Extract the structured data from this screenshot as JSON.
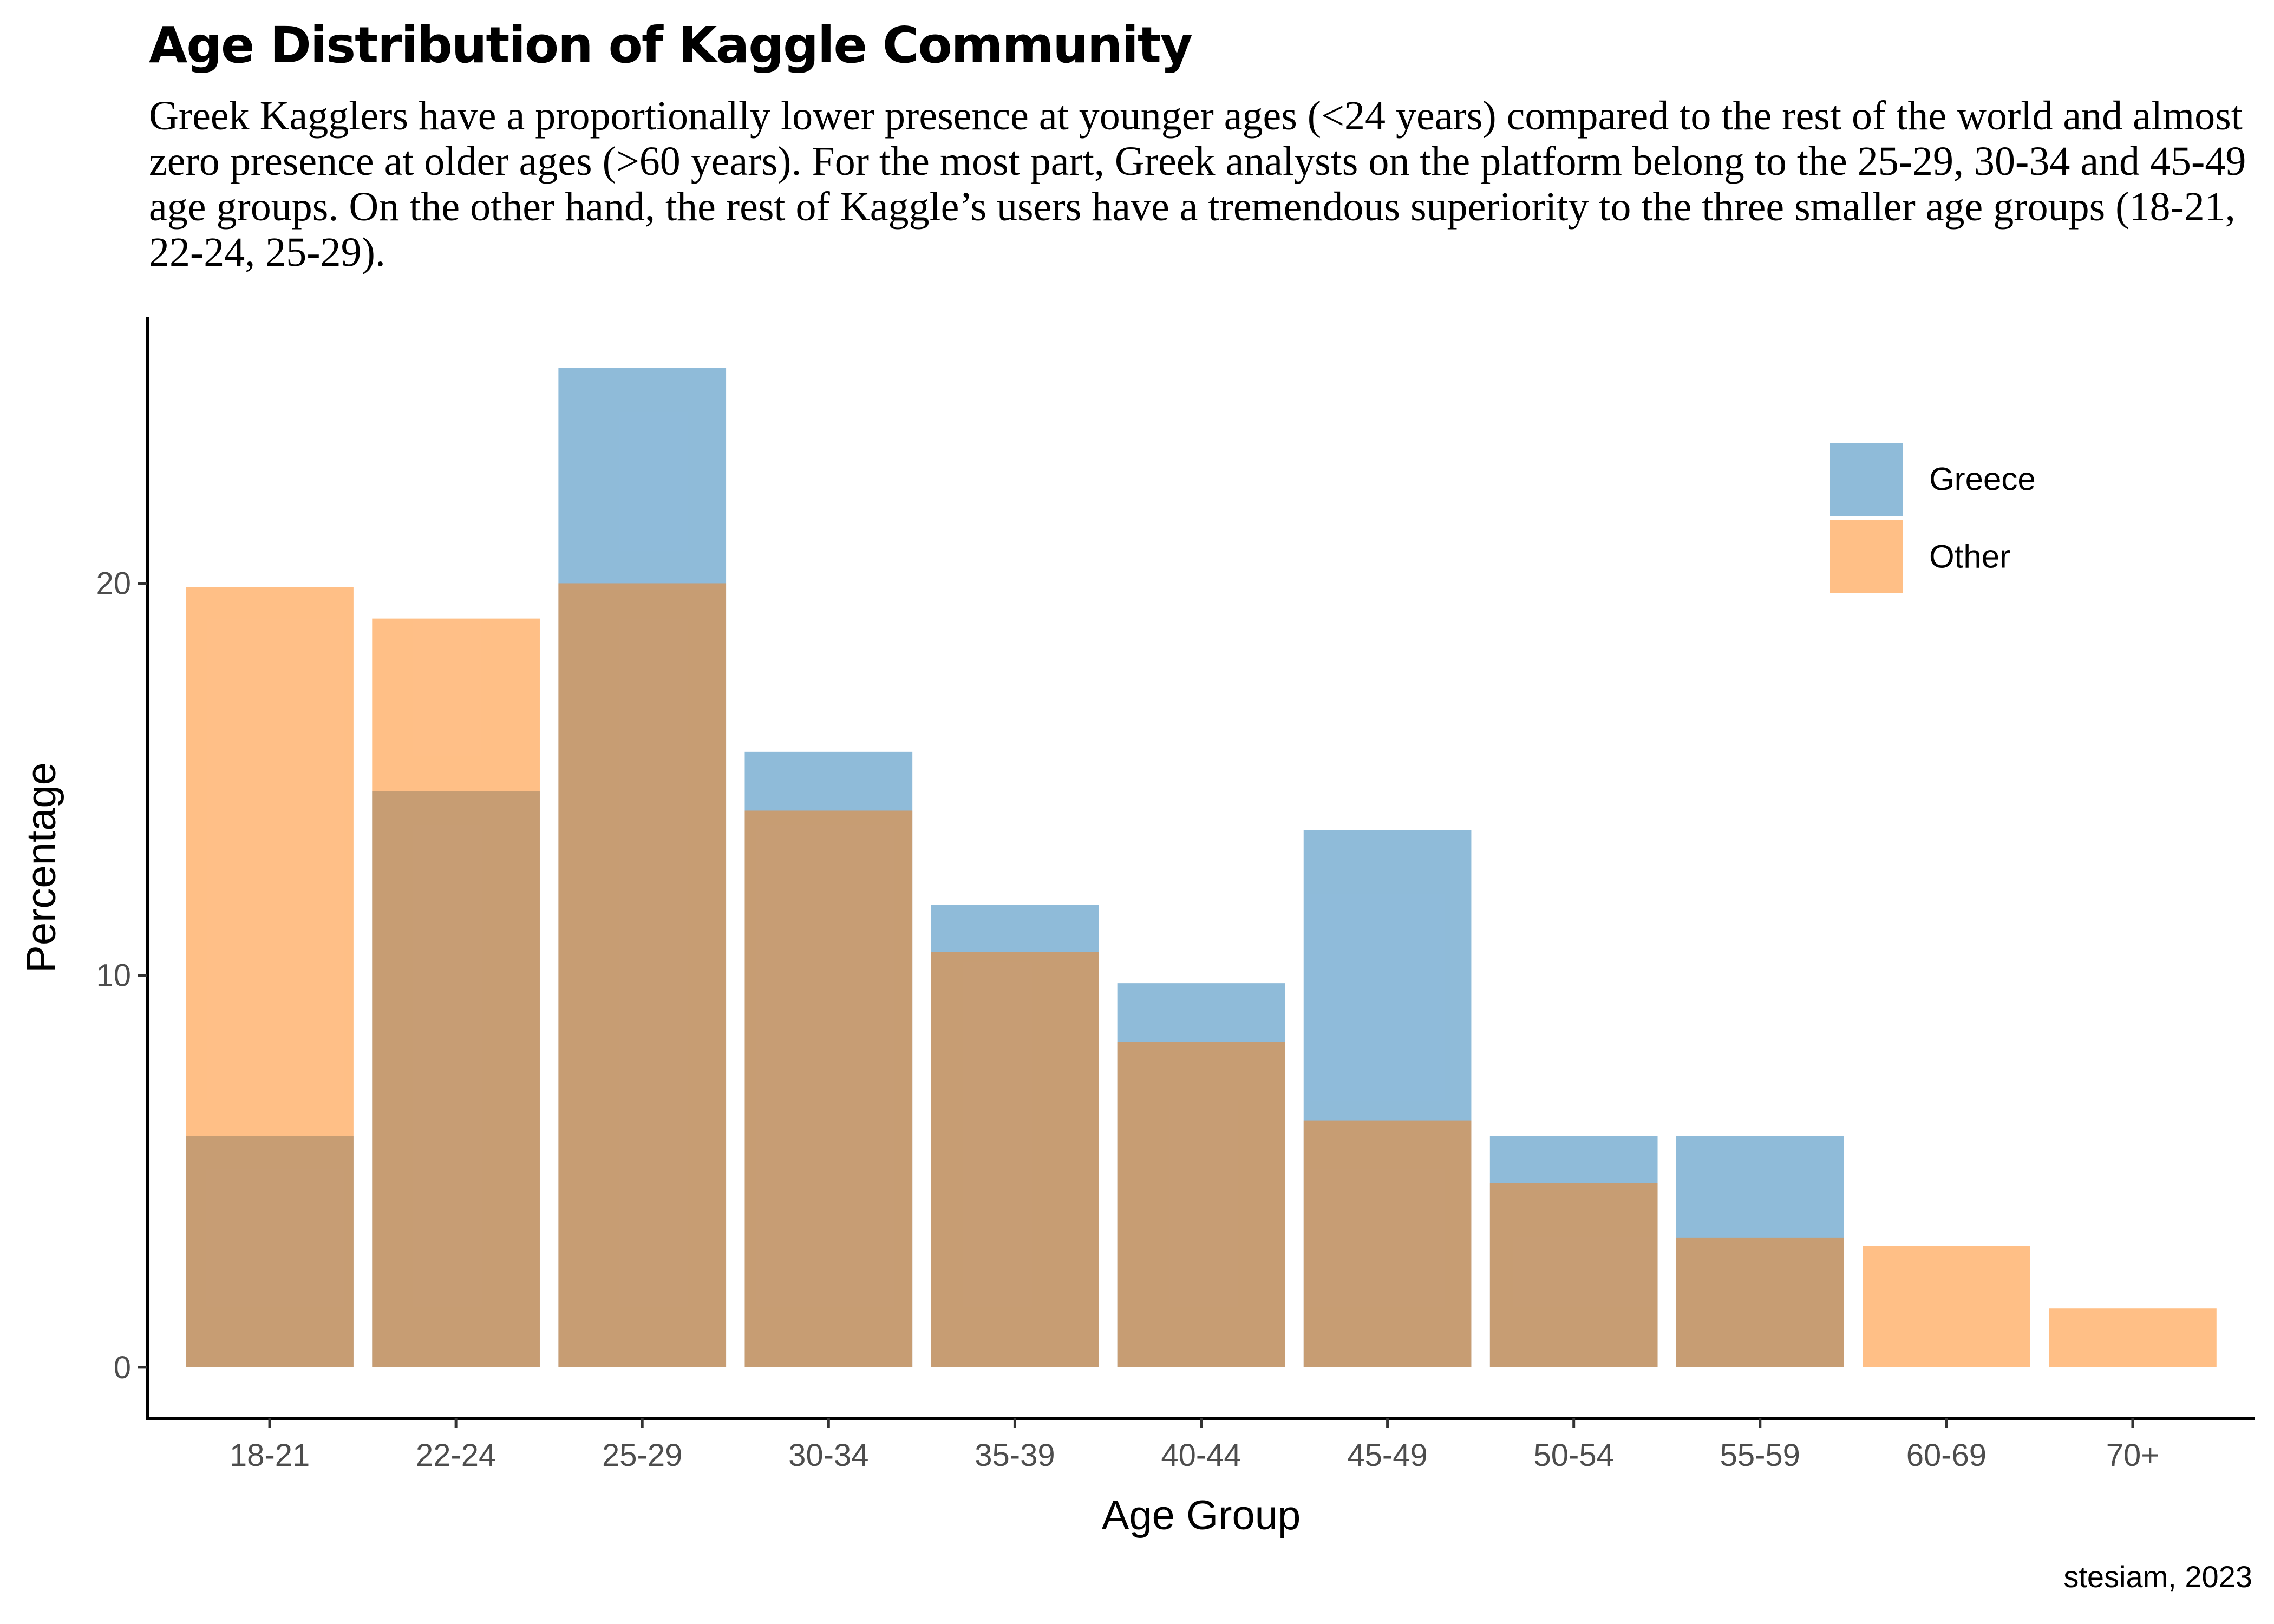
{
  "title": "Age Distribution of Kaggle Community",
  "subtitle": "Greek Kagglers have a proportionally lower presence at younger ages (<24 years) compared to the rest of the world and almost zero presence at older ages (>60 years). For the most part, Greek analysts on the platform belong to the 25-29, 30-34 and 45-49 age groups. On the other hand, the rest of Kaggle’s users have a tremendous superiority to the three smaller age groups (18-21, 22-24, 25-29).",
  "caption": "stesiam, 2023",
  "colors": {
    "Greece": "#1f77b4",
    "Other": "#ff7f0e",
    "bar_opacity": 0.5
  },
  "chart_data": {
    "type": "bar",
    "title": "Age Distribution of Kaggle Community",
    "xlabel": "Age Group",
    "ylabel": "Percentage",
    "categories": [
      "18-21",
      "22-24",
      "25-29",
      "30-34",
      "35-39",
      "40-44",
      "45-49",
      "50-54",
      "55-59",
      "60-69",
      "70+"
    ],
    "series": [
      {
        "name": "Greece",
        "values": [
          5.9,
          14.7,
          25.5,
          15.7,
          11.8,
          9.8,
          13.7,
          5.9,
          5.9,
          0,
          0
        ]
      },
      {
        "name": "Other",
        "values": [
          19.9,
          19.1,
          20.0,
          14.2,
          10.6,
          8.3,
          6.3,
          4.7,
          3.3,
          3.1,
          1.5
        ]
      }
    ],
    "ylim": [
      -1.3,
      26.8
    ],
    "yticks": [
      0,
      10,
      20
    ],
    "grid": false,
    "legend_position": "top-right",
    "overlay": "overlapping semi-transparent bars"
  }
}
